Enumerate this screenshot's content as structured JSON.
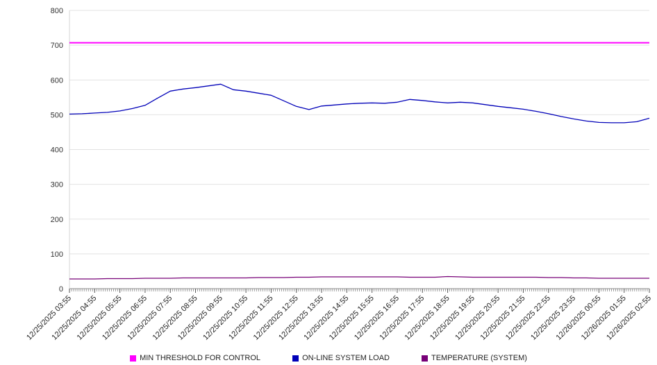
{
  "chart_data": {
    "type": "line",
    "title": "",
    "xlabel": "",
    "ylabel": "",
    "grid": true,
    "legend_position": "bottom",
    "background_color": "#ffffff",
    "y_axis": {
      "min": 0,
      "max": 800,
      "step": 100
    },
    "x_axis": {
      "labels": [
        "12/25/2025 03:55",
        "12/25/2025 04:55",
        "12/25/2025 05:55",
        "12/25/2025 06:55",
        "12/25/2025 07:55",
        "12/25/2025 08:55",
        "12/25/2025 09:55",
        "12/25/2025 10:55",
        "12/25/2025 11:55",
        "12/25/2025 12:55",
        "12/25/2025 13:55",
        "12/25/2025 14:55",
        "12/25/2025 15:55",
        "12/25/2025 16:55",
        "12/25/2025 17:55",
        "12/25/2025 18:55",
        "12/25/2025 19:55",
        "12/25/2025 20:55",
        "12/25/2025 21:55",
        "12/25/2025 22:55",
        "12/25/2025 23:55",
        "12/26/2025 00:55",
        "12/26/2025 01:55",
        "12/26/2025 02:55"
      ],
      "minor_ticks_per_hour": 12
    },
    "samples_per_hour": 2,
    "series": [
      {
        "name": "MIN THRESHOLD FOR CONTROL",
        "color": "#ff00ff",
        "type": "constant",
        "value": 707
      },
      {
        "name": "ON-LINE SYSTEM LOAD",
        "color": "#0000b8",
        "type": "line",
        "values": [
          502,
          503,
          505,
          507,
          511,
          518,
          527,
          548,
          568,
          574,
          578,
          583,
          588,
          572,
          568,
          562,
          556,
          540,
          524,
          515,
          525,
          528,
          531,
          533,
          534,
          533,
          536,
          544,
          541,
          537,
          534,
          536,
          534,
          529,
          524,
          520,
          516,
          510,
          503,
          495,
          488,
          482,
          478,
          477,
          477,
          480,
          490
        ]
      },
      {
        "name": "TEMPERATURE (SYSTEM)",
        "color": "#770077",
        "type": "line",
        "values": [
          28,
          28,
          28,
          29,
          29,
          29,
          30,
          30,
          30,
          31,
          31,
          31,
          31,
          31,
          31,
          32,
          32,
          32,
          33,
          33,
          34,
          34,
          34,
          34,
          34,
          34,
          34,
          33,
          33,
          33,
          35,
          34,
          33,
          33,
          33,
          33,
          33,
          33,
          32,
          32,
          31,
          31,
          30,
          30,
          30,
          30,
          30
        ]
      }
    ]
  }
}
